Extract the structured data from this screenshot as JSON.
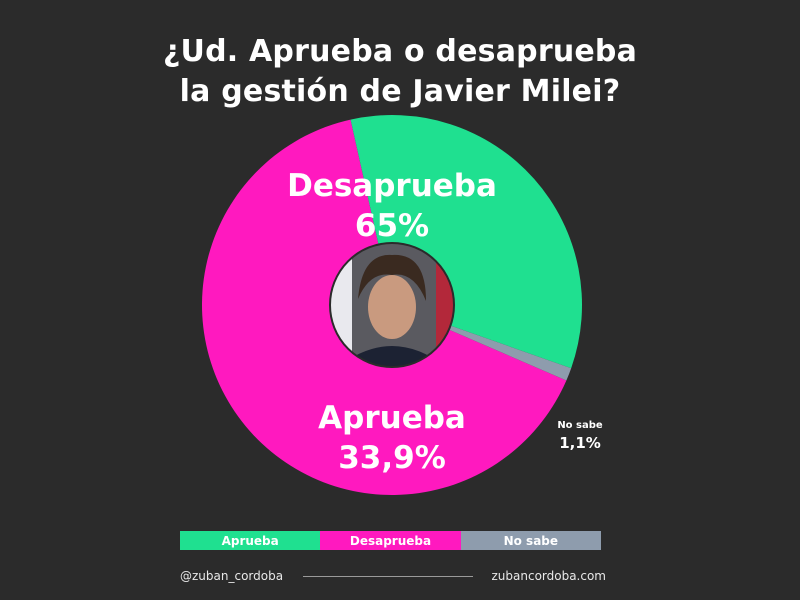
{
  "title": {
    "line1": "¿Ud. Aprueba o desaprueba",
    "line2": "la gestión de Javier Milei?"
  },
  "chart_data": {
    "type": "pie",
    "title": "¿Ud. Aprueba o desaprueba la gestión de Javier Milei?",
    "slices": [
      {
        "label": "Desaprueba",
        "value": 65,
        "value_label": "65%",
        "color": "#ff19bf"
      },
      {
        "label": "Aprueba",
        "value": 33.9,
        "value_label": "33,9%",
        "color": "#1fe090"
      },
      {
        "label": "No sabe",
        "value": 1.1,
        "value_label": "1,1%",
        "color": "#8e9cad"
      }
    ],
    "legend_position": "bottom",
    "center_image": "photo of Javier Milei"
  },
  "legend": [
    {
      "label": "Aprueba",
      "color": "#1fe090"
    },
    {
      "label": "Desaprueba",
      "color": "#ff19bf"
    },
    {
      "label": "No sabe",
      "color": "#8e9cad"
    }
  ],
  "footer": {
    "handle": "@zuban_cordoba",
    "website": "zubancordoba.com"
  }
}
